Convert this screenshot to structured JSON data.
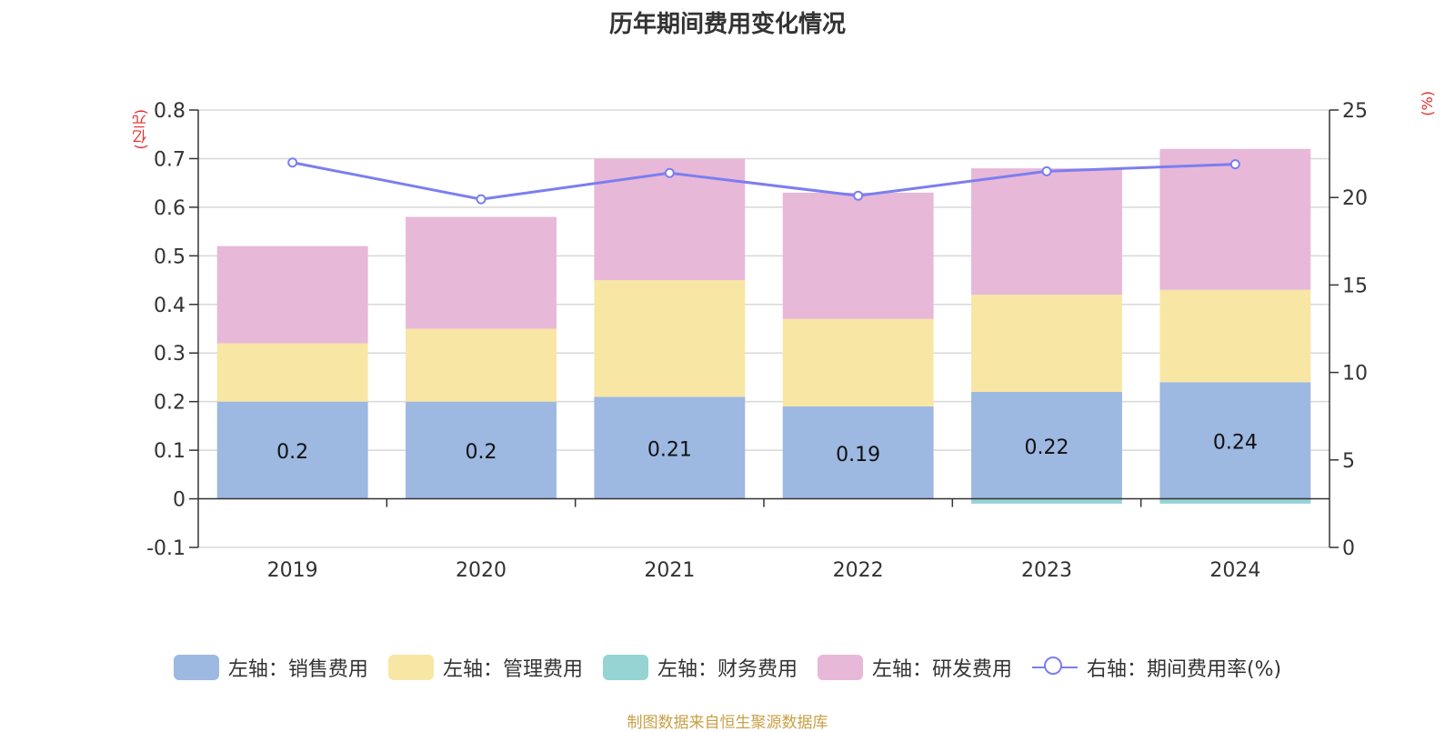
{
  "title": "历年期间费用变化情况",
  "left_unit": "(亿元)",
  "right_unit": "(%)",
  "source": "制图数据来自恒生聚源数据库",
  "colors": {
    "sales": "#9db8e1",
    "admin": "#f8e6a5",
    "finance": "#96d4d4",
    "rd": "#e8b8d8",
    "rate": "#7b7ef0",
    "grid": "#d8d8d8",
    "axis": "#333333"
  },
  "legend": [
    {
      "label": "左轴：销售费用",
      "type": "box",
      "color": "#9db8e1"
    },
    {
      "label": "左轴：管理费用",
      "type": "box",
      "color": "#f8e6a5"
    },
    {
      "label": "左轴：财务费用",
      "type": "box",
      "color": "#96d4d4"
    },
    {
      "label": "左轴：研发费用",
      "type": "box",
      "color": "#e8b8d8"
    },
    {
      "label": "右轴：期间费用率(%)",
      "type": "line",
      "color": "#7b7ef0"
    }
  ],
  "chart_data": {
    "type": "bar",
    "stacked": true,
    "categories": [
      "2019",
      "2020",
      "2021",
      "2022",
      "2023",
      "2024"
    ],
    "series": [
      {
        "name": "左轴：销售费用",
        "axis": "left",
        "values": [
          0.2,
          0.2,
          0.21,
          0.19,
          0.22,
          0.24
        ],
        "labels": [
          "0.2",
          "0.2",
          "0.21",
          "0.19",
          "0.22",
          "0.24"
        ]
      },
      {
        "name": "左轴：管理费用",
        "axis": "left",
        "values": [
          0.12,
          0.15,
          0.24,
          0.18,
          0.2,
          0.19
        ]
      },
      {
        "name": "左轴：财务费用",
        "axis": "left",
        "values": [
          0.0,
          0.0,
          0.0,
          0.0,
          -0.01,
          -0.01
        ]
      },
      {
        "name": "左轴：研发费用",
        "axis": "left",
        "values": [
          0.2,
          0.23,
          0.25,
          0.26,
          0.26,
          0.29
        ]
      },
      {
        "name": "右轴：期间费用率(%)",
        "axis": "right",
        "type": "line",
        "values": [
          22.0,
          19.9,
          21.4,
          20.1,
          21.5,
          21.9
        ]
      }
    ],
    "left_axis": {
      "min": -0.1,
      "max": 0.8,
      "ticks": [
        "-0.1",
        "0",
        "0.1",
        "0.2",
        "0.3",
        "0.4",
        "0.5",
        "0.6",
        "0.7",
        "0.8"
      ]
    },
    "right_axis": {
      "min": 0,
      "max": 25,
      "ticks": [
        "0",
        "5",
        "10",
        "15",
        "20",
        "25"
      ]
    },
    "grid": true,
    "legend_position": "bottom"
  }
}
